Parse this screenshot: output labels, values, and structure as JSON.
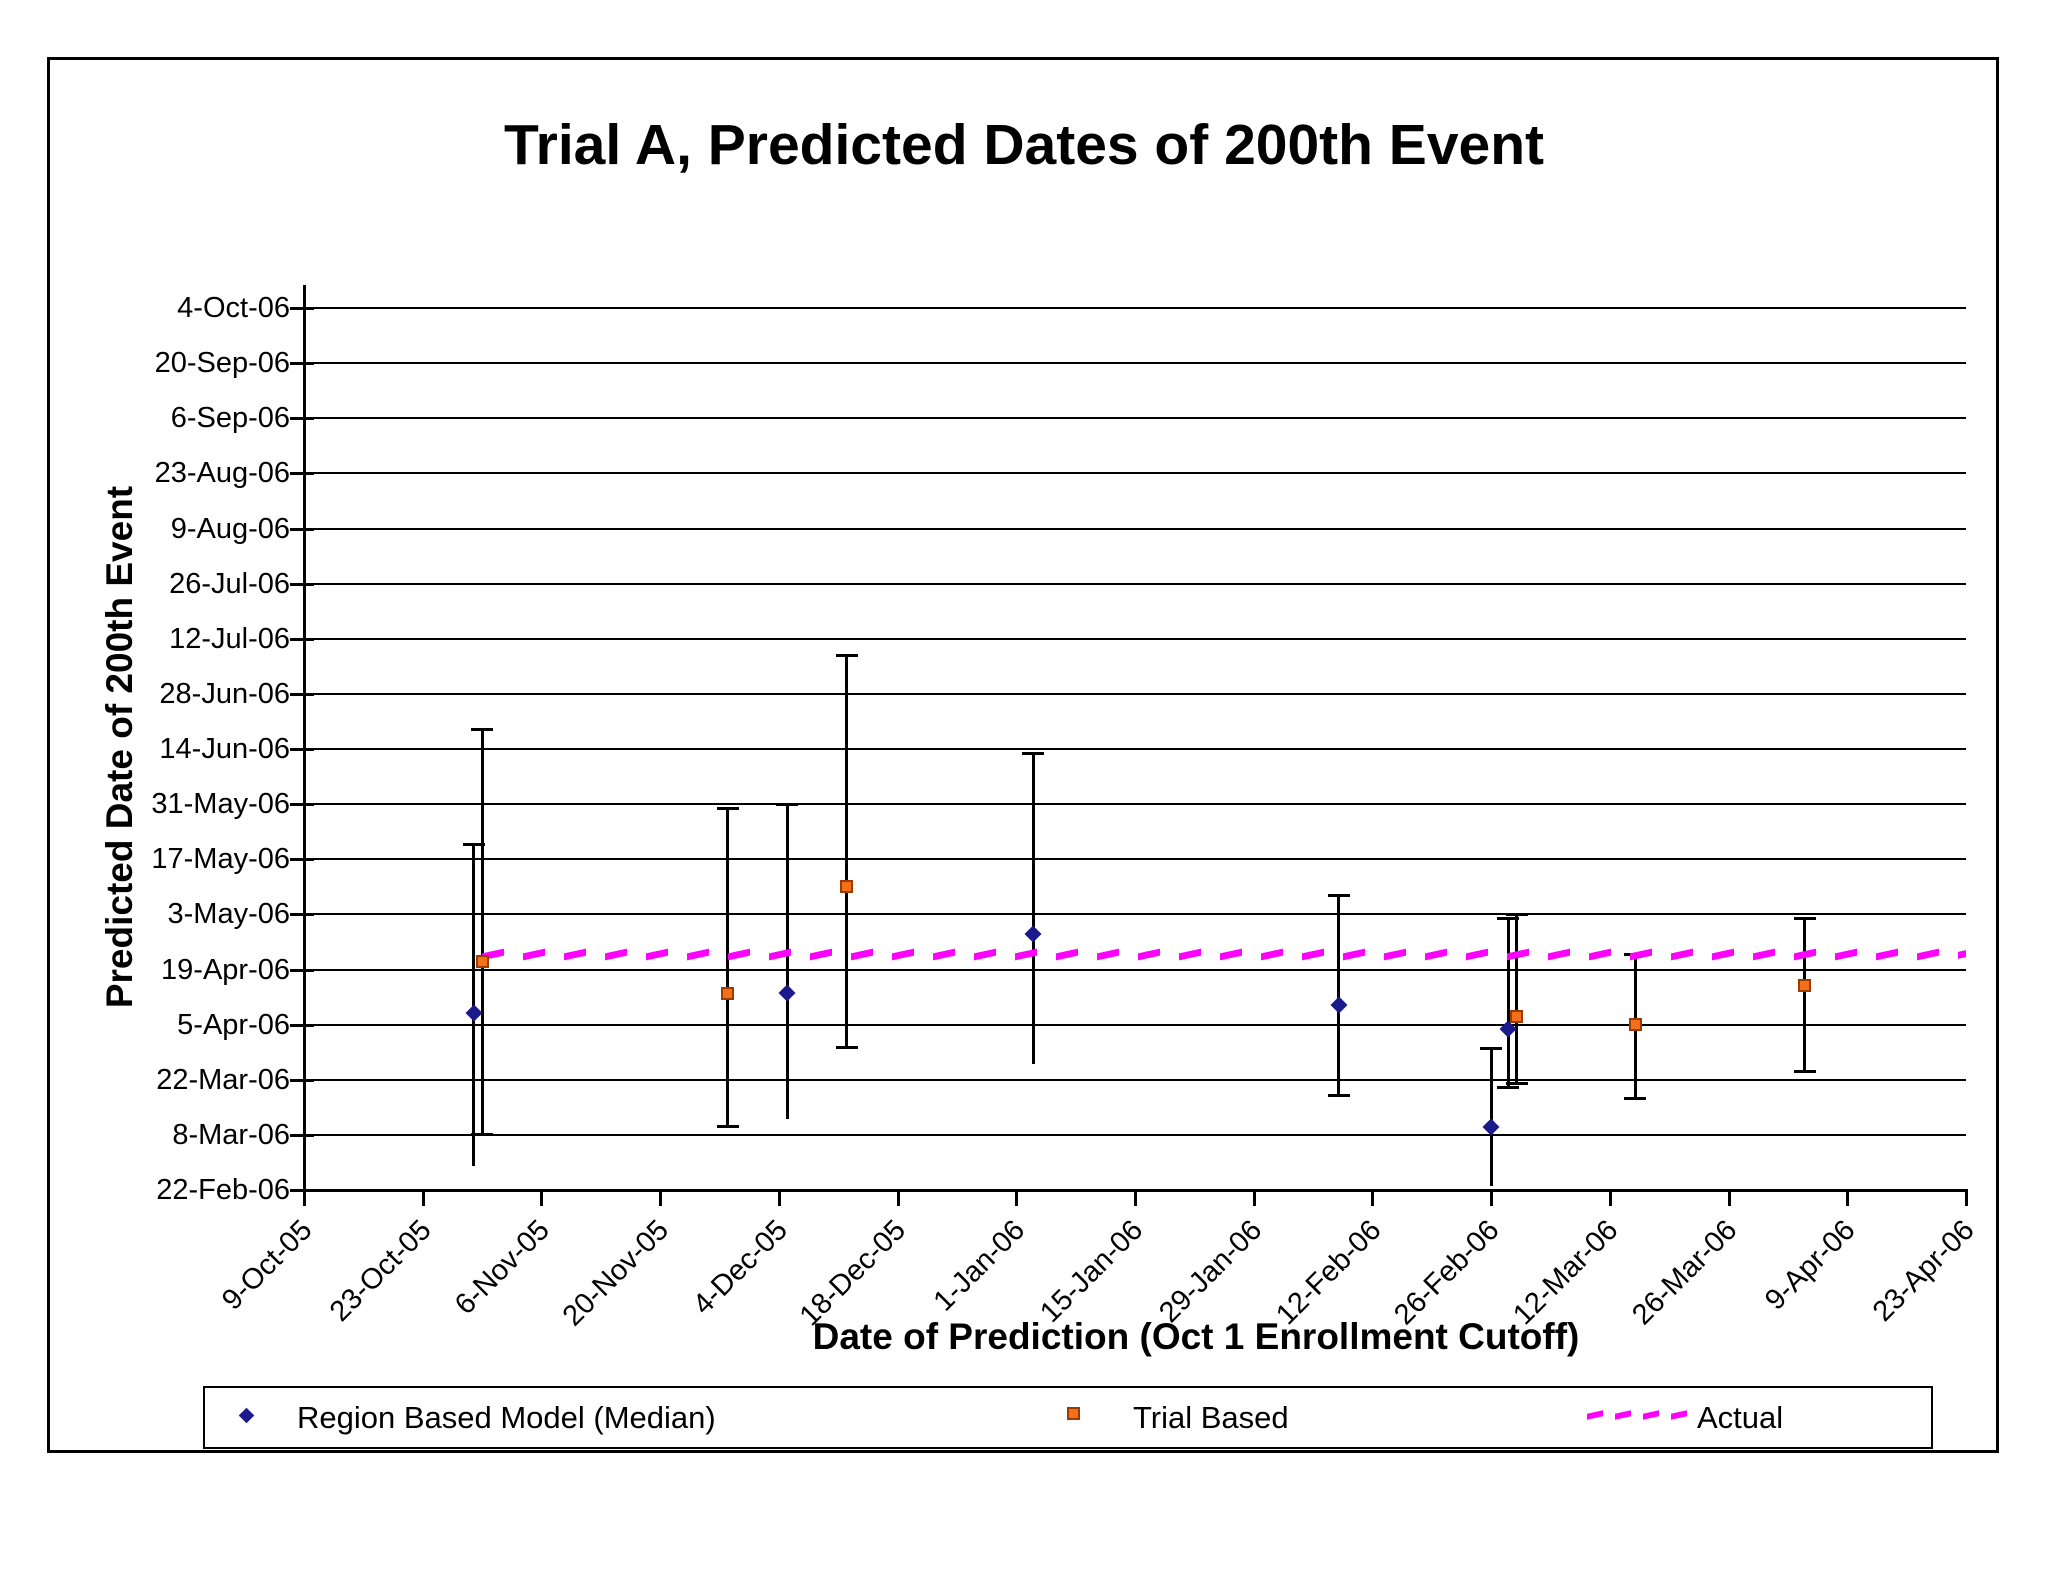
{
  "title": "Trial A, Predicted Dates of 200th Event",
  "chart_data": {
    "type": "scatter",
    "title": "Trial A, Predicted Dates of 200th Event",
    "xlabel": "Date of Prediction (Oct 1 Enrollment Cutoff)",
    "ylabel": "Predicted Date of 200th Event",
    "grid": "horizontal-on",
    "legend_position": "bottom",
    "x_axis": {
      "min": "2005-10-09",
      "max": "2006-04-23",
      "tick_interval_days": 14,
      "ticks": [
        {
          "label": "9-Oct-05",
          "date": "2005-10-09"
        },
        {
          "label": "23-Oct-05",
          "date": "2005-10-23"
        },
        {
          "label": "6-Nov-05",
          "date": "2005-11-06"
        },
        {
          "label": "20-Nov-05",
          "date": "2005-11-20"
        },
        {
          "label": "4-Dec-05",
          "date": "2005-12-04"
        },
        {
          "label": "18-Dec-05",
          "date": "2005-12-18"
        },
        {
          "label": "1-Jan-06",
          "date": "2006-01-01"
        },
        {
          "label": "15-Jan-06",
          "date": "2006-01-15"
        },
        {
          "label": "29-Jan-06",
          "date": "2006-01-29"
        },
        {
          "label": "12-Feb-06",
          "date": "2006-02-12"
        },
        {
          "label": "26-Feb-06",
          "date": "2006-02-26"
        },
        {
          "label": "12-Mar-06",
          "date": "2006-03-12"
        },
        {
          "label": "26-Mar-06",
          "date": "2006-03-26"
        },
        {
          "label": "9-Apr-06",
          "date": "2006-04-09"
        },
        {
          "label": "23-Apr-06",
          "date": "2006-04-23"
        }
      ]
    },
    "y_axis": {
      "min": "2006-02-22",
      "max": "2006-10-04",
      "tick_interval_days": 14,
      "ticks": [
        {
          "label": "4-Oct-06",
          "date": "2006-10-04"
        },
        {
          "label": "20-Sep-06",
          "date": "2006-09-20"
        },
        {
          "label": "6-Sep-06",
          "date": "2006-09-06"
        },
        {
          "label": "23-Aug-06",
          "date": "2006-08-23"
        },
        {
          "label": "9-Aug-06",
          "date": "2006-08-09"
        },
        {
          "label": "26-Jul-06",
          "date": "2006-07-26"
        },
        {
          "label": "12-Jul-06",
          "date": "2006-07-12"
        },
        {
          "label": "28-Jun-06",
          "date": "2006-06-28"
        },
        {
          "label": "14-Jun-06",
          "date": "2006-06-14"
        },
        {
          "label": "31-May-06",
          "date": "2006-05-31"
        },
        {
          "label": "17-May-06",
          "date": "2006-05-17"
        },
        {
          "label": "3-May-06",
          "date": "2006-05-03"
        },
        {
          "label": "19-Apr-06",
          "date": "2006-04-19"
        },
        {
          "label": "5-Apr-06",
          "date": "2006-04-05"
        },
        {
          "label": "22-Mar-06",
          "date": "2006-03-22"
        },
        {
          "label": "8-Mar-06",
          "date": "2006-03-08"
        },
        {
          "label": "22-Feb-06",
          "date": "2006-02-22"
        }
      ]
    },
    "series": [
      {
        "name": "Region Based Model (Median)",
        "marker": "diamond",
        "color": "#1A1A8C",
        "points": [
          {
            "x": "2005-10-29",
            "y": "2006-04-08",
            "hi": "2006-05-21",
            "lo": "2006-02-28",
            "lo_cap": false
          },
          {
            "x": "2005-12-05",
            "y": "2006-04-13",
            "hi": "2006-05-31",
            "lo": "2006-03-12",
            "lo_cap": false
          },
          {
            "x": "2006-01-03",
            "y": "2006-04-28",
            "hi": "2006-06-13",
            "lo": "2006-03-26",
            "lo_cap": false
          },
          {
            "x": "2006-02-08",
            "y": "2006-04-10",
            "hi": "2006-05-08",
            "lo": "2006-03-18",
            "lo_cap": true
          },
          {
            "x": "2006-02-26",
            "y": "2006-03-10",
            "hi": "2006-03-30",
            "lo": "2006-02-23",
            "lo_cap": false
          },
          {
            "x": "2006-02-28",
            "y": "2006-04-04",
            "hi": "2006-05-02",
            "lo": "2006-03-20",
            "lo_cap": true
          }
        ]
      },
      {
        "name": "Trial Based",
        "marker": "square",
        "color": "#F36F1A",
        "border_color": "#9C3A00",
        "points": [
          {
            "x": "2005-10-30",
            "y": "2006-04-21",
            "hi": "2006-06-19",
            "lo": "2006-03-08",
            "lo_cap": true
          },
          {
            "x": "2005-11-28",
            "y": "2006-04-13",
            "hi": "2006-05-30",
            "lo": "2006-03-10",
            "lo_cap": true
          },
          {
            "x": "2005-12-12",
            "y": "2006-05-10",
            "hi": "2006-07-08",
            "lo": "2006-03-30",
            "lo_cap": true
          },
          {
            "x": "2006-03-01",
            "y": "2006-04-07",
            "hi": "2006-05-03",
            "lo": "2006-03-21",
            "lo_cap": true
          },
          {
            "x": "2006-03-15",
            "y": "2006-04-05",
            "hi": "2006-04-23",
            "lo": "2006-03-17",
            "lo_cap": true
          },
          {
            "x": "2006-04-04",
            "y": "2006-04-15",
            "hi": "2006-05-02",
            "lo": "2006-03-24",
            "lo_cap": true
          }
        ]
      },
      {
        "name": "Actual",
        "marker": "dashed-line",
        "color": "#FF00FF",
        "value": "2006-04-23",
        "start": "2005-10-30",
        "end": "2006-04-23"
      }
    ]
  },
  "legend": {
    "items": [
      {
        "label": "Region Based Model (Median)",
        "swatch": "diamond-icon"
      },
      {
        "label": "Trial Based",
        "swatch": "square-icon"
      },
      {
        "label": "Actual",
        "swatch": "dash-icon"
      }
    ]
  }
}
